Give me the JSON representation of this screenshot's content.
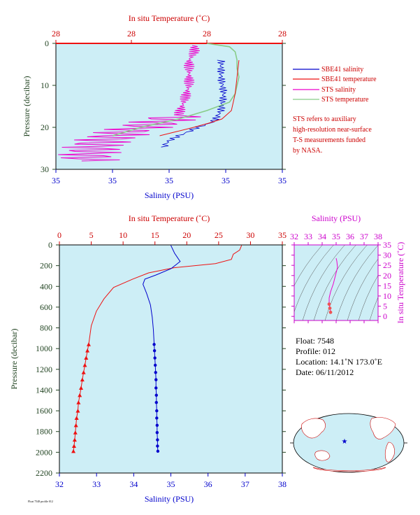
{
  "colors": {
    "plot_bg": "#cdeef6",
    "salinity_blue": "#0000cc",
    "temperature_red": "#ee1111",
    "sts_salinity_magenta": "#ee00cc",
    "sts_temperature_green": "#88cc88",
    "pressure_axis_green": "#224422",
    "ts_axis_magenta": "#cc00cc",
    "map_ocean": "#cdeef6",
    "map_land": "#ffffff",
    "map_land_edge": "#cc0000"
  },
  "top_panel": {
    "temp_axis_title": "In situ Temperature (˚C)",
    "temp_ticks": [
      "28",
      "28",
      "28",
      "28"
    ],
    "salinity_axis_title": "Salinity (PSU)",
    "salinity_ticks": [
      "35",
      "35",
      "35",
      "35",
      "35"
    ],
    "pressure_axis_title": "Pressure (decibar)",
    "pressure_ticks": [
      "0",
      "10",
      "20",
      "30"
    ],
    "legend": [
      {
        "label": "SBE41 salinity",
        "color": "#0000cc"
      },
      {
        "label": "SBE41 temperature",
        "color": "#ee1111"
      },
      {
        "label": "STS salinity",
        "color": "#ee00cc"
      },
      {
        "label": "STS temperature",
        "color": "#88cc88"
      }
    ],
    "note": [
      "STS refers to auxiliary",
      "high-resolution near-surface",
      "T-S measurements funded",
      "by NASA."
    ]
  },
  "bottom_panel": {
    "temp_axis_title": "In situ Temperature (˚C)",
    "temp_ticks": [
      "0",
      "5",
      "10",
      "15",
      "20",
      "25",
      "30",
      "35"
    ],
    "salinity_axis_title": "Salinity (PSU)",
    "salinity_ticks": [
      "32",
      "33",
      "34",
      "35",
      "36",
      "37",
      "38"
    ],
    "pressure_axis_title": "Pressure (decibar)",
    "pressure_ticks": [
      "0",
      "200",
      "400",
      "600",
      "800",
      "1000",
      "1200",
      "1400",
      "1600",
      "1800",
      "2000",
      "2200"
    ]
  },
  "ts_panel": {
    "salinity_axis_title": "Salinity (PSU)",
    "salinity_ticks": [
      "32",
      "33",
      "34",
      "35",
      "36",
      "37",
      "38"
    ],
    "temp_axis_title": "In situ Temperature (˚C)",
    "temp_ticks": [
      "0",
      "5",
      "10",
      "15",
      "20",
      "25",
      "30",
      "35"
    ]
  },
  "float_info": {
    "float_line": "Float:  7548",
    "profile_line": "Profile:  012",
    "location_line": "Location:  14.1˚N  173.0˚E",
    "date_line": "Date:  06/11/2012"
  },
  "footer_stamp": "Float 7548 profile 012",
  "chart_data": [
    {
      "type": "line",
      "title": "",
      "xlabel": "Salinity (PSU)",
      "x2label": "In situ Temperature (˚C)",
      "ylabel": "Pressure (decibar)",
      "ylim": [
        30,
        0
      ],
      "xlim": [
        34.4,
        35.25
      ],
      "x2lim": [
        27.6,
        28.8
      ],
      "series": [
        {
          "name": "SBE41 salinity",
          "axis": "salinity",
          "x": [
            35.02,
            35.02,
            35.03,
            35.02,
            35.0,
            34.98,
            34.93,
            34.9,
            34.86,
            34.83,
            34.81
          ],
          "y": [
            4,
            8,
            12,
            16,
            18,
            19,
            20,
            21,
            22,
            23,
            24
          ]
        },
        {
          "name": "SBE41 temperature",
          "axis": "temperature",
          "x": [
            28.57,
            28.56,
            28.55,
            28.53,
            28.48,
            28.41,
            28.33,
            28.24,
            28.15
          ],
          "y": [
            4,
            8,
            12,
            16,
            18,
            19,
            20,
            21,
            22
          ]
        },
        {
          "name": "STS salinity",
          "axis": "salinity",
          "x": [
            34.92,
            34.92,
            34.9,
            34.9,
            34.9,
            34.9,
            34.88,
            34.86,
            34.78,
            34.66,
            34.55,
            34.52
          ],
          "y": [
            0.5,
            2,
            4,
            6,
            8,
            10,
            14,
            17,
            19,
            21,
            24,
            27
          ]
        },
        {
          "name": "STS temperature",
          "axis": "temperature",
          "x": [
            28.4,
            28.52,
            28.55,
            28.56,
            28.56,
            28.57,
            28.56,
            28.55,
            28.52,
            28.4,
            28.25,
            28.05,
            27.9
          ],
          "y": [
            0,
            0.8,
            2,
            4,
            6,
            8,
            10,
            12,
            14,
            16,
            18,
            20,
            22
          ]
        }
      ]
    },
    {
      "type": "line",
      "title": "",
      "xlabel": "Salinity (PSU)",
      "x2label": "In situ Temperature (˚C)",
      "ylabel": "Pressure (decibar)",
      "xlim": [
        32,
        38
      ],
      "x2lim": [
        0,
        35
      ],
      "ylim": [
        2200,
        0
      ],
      "series": [
        {
          "name": "SBE41 salinity",
          "axis": "salinity",
          "x": [
            35.0,
            35.1,
            35.25,
            35.0,
            34.6,
            34.3,
            34.25,
            34.35,
            34.45,
            34.5,
            34.53,
            34.55,
            34.56,
            34.57,
            34.58,
            34.59,
            34.6,
            34.6,
            34.61,
            34.61,
            34.62,
            34.62,
            34.63,
            34.63,
            34.64,
            34.64,
            34.65
          ],
          "y": [
            5,
            80,
            160,
            230,
            290,
            330,
            380,
            470,
            580,
            700,
            820,
            960,
            1020,
            1090,
            1160,
            1230,
            1300,
            1380,
            1450,
            1520,
            1600,
            1670,
            1740,
            1810,
            1880,
            1940,
            1990
          ]
        },
        {
          "name": "SBE41 temperature",
          "axis": "temperature",
          "x": [
            28.6,
            28.3,
            27.3,
            27.0,
            24.5,
            18.0,
            14.0,
            11.5,
            8.5,
            7.0,
            5.8,
            5.0,
            4.6,
            4.4,
            4.2,
            4.0,
            3.8,
            3.6,
            3.4,
            3.2,
            3.0,
            2.9,
            2.7,
            2.6,
            2.5,
            2.4,
            2.3,
            2.2
          ],
          "y": [
            5,
            50,
            90,
            140,
            180,
            220,
            270,
            330,
            410,
            520,
            640,
            780,
            960,
            1020,
            1090,
            1160,
            1230,
            1300,
            1380,
            1450,
            1520,
            1600,
            1670,
            1740,
            1810,
            1880,
            1940,
            1990
          ]
        }
      ]
    },
    {
      "type": "scatter",
      "title": "",
      "xlabel": "Salinity (PSU)",
      "ylabel": "In situ Temperature (˚C)",
      "xlim": [
        32,
        38
      ],
      "ylim": [
        -2,
        35
      ],
      "series": [
        {
          "name": "T-S profile",
          "color": "#ee00cc",
          "x": [
            35.0,
            35.05,
            35.1,
            34.95,
            34.8,
            34.6,
            34.5,
            34.5,
            34.55,
            34.6
          ],
          "y": [
            28.5,
            27,
            24,
            20,
            16,
            12,
            9,
            6,
            4,
            2
          ]
        }
      ]
    }
  ]
}
